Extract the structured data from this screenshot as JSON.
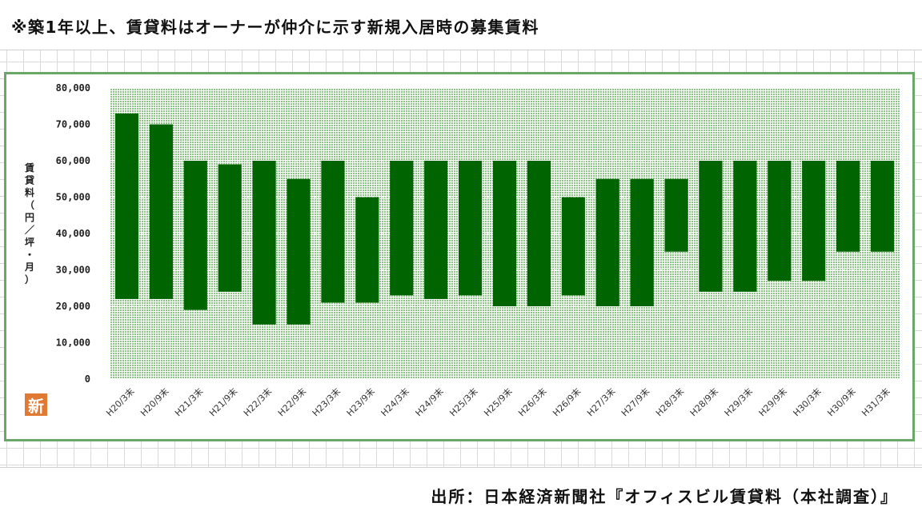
{
  "header": {
    "note": "※築1年以上、賃貸料はオーナーが仲介に示す新規入居時の募集賃料"
  },
  "footer": {
    "source": "出所：日本経済新聞社『オフィスビル賃貸料（本社調査）』"
  },
  "logo": {
    "text": "新"
  },
  "chart_data": {
    "type": "bar",
    "subtype": "floating-range",
    "ylabel": "賃貸料（円／坪・月）",
    "ylim": [
      0,
      80000
    ],
    "yticks": [
      0,
      10000,
      20000,
      30000,
      40000,
      50000,
      60000,
      70000,
      80000
    ],
    "ytick_labels": [
      "0",
      "10,000",
      "20,000",
      "30,000",
      "40,000",
      "50,000",
      "60,000",
      "70,000",
      "80,000"
    ],
    "categories": [
      "H20/3末",
      "H20/9末",
      "H21/3末",
      "H21/9末",
      "H22/3末",
      "H22/9末",
      "H23/3末",
      "H23/9末",
      "H24/3末",
      "H24/9末",
      "H25/3末",
      "H25/9末",
      "H26/3末",
      "H26/9末",
      "H27/3末",
      "H27/9末",
      "H28/3末",
      "H28/9末",
      "H29/3末",
      "H29/9末",
      "H30/3末",
      "H30/9末",
      "H31/3末"
    ],
    "low": [
      22000,
      22000,
      19000,
      24000,
      15000,
      15000,
      21000,
      21000,
      23000,
      22000,
      23000,
      20000,
      20000,
      23000,
      20000,
      20000,
      35000,
      24000,
      24000,
      27000,
      27000,
      35000,
      35000
    ],
    "high": [
      73000,
      70000,
      60000,
      59000,
      60000,
      55000,
      60000,
      50000,
      60000,
      60000,
      60000,
      60000,
      60000,
      50000,
      55000,
      55000,
      55000,
      60000,
      60000,
      60000,
      60000,
      60000,
      60000
    ],
    "grid": true,
    "colors": {
      "bar": "#006400",
      "plot_bg": "#b9dfb2",
      "frame": "#6aa86a"
    }
  }
}
